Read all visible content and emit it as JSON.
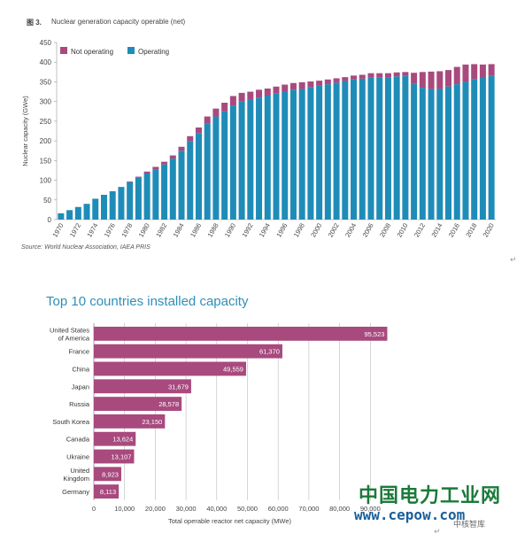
{
  "figure_label": "图 3.",
  "top_title": "Nuclear generation capacity operable (net)",
  "source": "Source: World Nuclear Association, IAEA PRIS",
  "bottom_title": "Top 10 countries installed capacity",
  "return_mark": "↵",
  "watermark": {
    "cn": "中国电力工业网",
    "url": "www.cepow.com",
    "sub": "中核智库"
  },
  "colors": {
    "operating": "#1f8cb8",
    "not_operating": "#a84a7e",
    "bar": "#a84a7e",
    "title": "#2e8fb8"
  },
  "chart_data": [
    {
      "type": "bar",
      "stacked": true,
      "title": "Nuclear generation capacity operable (net)",
      "xlabel": "",
      "ylabel": "Nuclear capacity (GWe)",
      "ylim": [
        0,
        450
      ],
      "yticks": [
        0,
        50,
        100,
        150,
        200,
        250,
        300,
        350,
        400,
        450
      ],
      "legend": "top-left",
      "grid": false,
      "categories": [
        "1970",
        "1971",
        "1972",
        "1973",
        "1974",
        "1975",
        "1976",
        "1977",
        "1978",
        "1979",
        "1980",
        "1981",
        "1982",
        "1983",
        "1984",
        "1985",
        "1986",
        "1987",
        "1988",
        "1989",
        "1990",
        "1991",
        "1992",
        "1993",
        "1994",
        "1995",
        "1996",
        "1997",
        "1998",
        "1999",
        "2000",
        "2001",
        "2002",
        "2003",
        "2004",
        "2005",
        "2006",
        "2007",
        "2008",
        "2009",
        "2010",
        "2011",
        "2012",
        "2013",
        "2014",
        "2015",
        "2016",
        "2017",
        "2018",
        "2019",
        "2020"
      ],
      "tick_labels": [
        "1970",
        "1972",
        "1974",
        "1976",
        "1978",
        "1980",
        "1982",
        "1984",
        "1986",
        "1988",
        "1990",
        "1992",
        "1994",
        "1996",
        "1998",
        "2000",
        "2002",
        "2004",
        "2006",
        "2008",
        "2010",
        "2012",
        "2014",
        "2016",
        "2018",
        "2020"
      ],
      "series": [
        {
          "name": "Operating",
          "values": [
            16,
            24,
            32,
            40,
            53,
            63,
            72,
            83,
            95,
            106,
            117,
            128,
            140,
            155,
            175,
            200,
            220,
            245,
            262,
            275,
            290,
            300,
            305,
            310,
            315,
            320,
            325,
            330,
            332,
            336,
            340,
            344,
            348,
            352,
            356,
            358,
            362,
            362,
            362,
            364,
            365,
            345,
            335,
            332,
            332,
            338,
            344,
            350,
            357,
            360,
            365
          ]
        },
        {
          "name": "Not operating",
          "values": [
            0,
            0,
            0,
            0,
            0,
            0,
            0,
            0,
            2,
            3,
            5,
            6,
            7,
            8,
            10,
            12,
            14,
            17,
            20,
            22,
            24,
            22,
            20,
            20,
            18,
            18,
            18,
            17,
            17,
            15,
            13,
            12,
            11,
            10,
            10,
            10,
            10,
            10,
            10,
            10,
            10,
            28,
            40,
            44,
            45,
            42,
            44,
            44,
            38,
            34,
            30
          ]
        }
      ]
    },
    {
      "type": "bar",
      "orientation": "horizontal",
      "title": "Top 10 countries installed capacity",
      "xlabel": "Total operable reactor net capacity (MWe)",
      "ylabel": "",
      "xlim": [
        0,
        100000
      ],
      "xticks": [
        "0",
        "10,000",
        "20,000",
        "30,000",
        "40,000",
        "50,000",
        "60,000",
        "70,000",
        "80,000",
        "90,000"
      ],
      "xtick_values": [
        0,
        10000,
        20000,
        30000,
        40000,
        50000,
        60000,
        70000,
        80000,
        90000
      ],
      "grid": true,
      "categories": [
        [
          "United States",
          "of America"
        ],
        [
          "France"
        ],
        [
          "China"
        ],
        [
          "Japan"
        ],
        [
          "Russia"
        ],
        [
          "South Korea"
        ],
        [
          "Canada"
        ],
        [
          "Ukraine"
        ],
        [
          "United",
          "Kingdom"
        ],
        [
          "Germany"
        ]
      ],
      "values": [
        95523,
        61370,
        49559,
        31679,
        28578,
        23150,
        13624,
        13107,
        8923,
        8113
      ],
      "value_labels": [
        "95,523",
        "61,370",
        "49,559",
        "31,679",
        "28,578",
        "23,150",
        "13,624",
        "13,107",
        "8,923",
        "8,113"
      ]
    }
  ]
}
